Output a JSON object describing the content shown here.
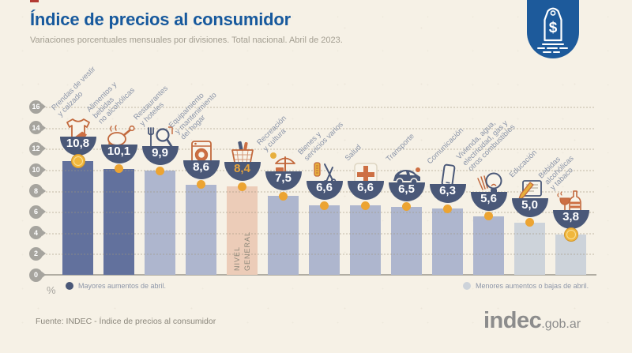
{
  "header": {
    "title": "Índice de precios al consumidor",
    "subtitle": "Variaciones porcentuales mensuales por divisiones. Total nacional. Abril de 2023."
  },
  "badge": {
    "icon": "price-tag-icon",
    "symbol": "$"
  },
  "chart_data": {
    "type": "bar",
    "title": "Índice de precios al consumidor",
    "subtitle": "Variaciones porcentuales mensuales por divisiones. Total nacional. Abril de 2023.",
    "ylabel": "%",
    "ylim": [
      0,
      16
    ],
    "yticks": [
      0,
      2,
      4,
      6,
      8,
      10,
      12,
      14,
      16
    ],
    "grid": true,
    "legend_position": "bottom",
    "marker_color": "#eca432",
    "group_colors": {
      "mayores": "#62719d",
      "intermedios": "#aeb6ce",
      "menores": "#cdd3da",
      "nivel_general": "#ecccb8"
    },
    "categories": [
      {
        "label": "Prendas de vestir y calzado",
        "label_lines": [
          "Prendas de vestir",
          "y calzado"
        ],
        "value": 10.8,
        "value_display": "10,8",
        "icon": "clothing-icon",
        "group": "mayores",
        "marker": "coin"
      },
      {
        "label": "Alimentos y bebidas no alcohólicas",
        "label_lines": [
          "Alimentos y",
          "bebidas",
          "no alcohólicas"
        ],
        "value": 10.1,
        "value_display": "10,1",
        "icon": "food-icon",
        "group": "mayores",
        "marker": "dot"
      },
      {
        "label": "Restaurantes y hoteles",
        "label_lines": [
          "Restaurantes",
          "y hoteles"
        ],
        "value": 9.9,
        "value_display": "9,9",
        "icon": "restaurant-icon",
        "group": "intermedios",
        "marker": "dot"
      },
      {
        "label": "Equipamiento y mantenimiento del hogar",
        "label_lines": [
          "Equipamiento",
          "y mantenimiento",
          "del hogar"
        ],
        "value": 8.6,
        "value_display": "8,6",
        "icon": "home-equipment-icon",
        "group": "intermedios",
        "marker": "dot"
      },
      {
        "label": "Nivel general",
        "label_lines": [],
        "bar_label": "NIVEL\nGENERAL",
        "value": 8.4,
        "value_display": "8,4",
        "value_color": "#e7a43c",
        "icon": "basket-icon",
        "group": "nivel_general",
        "marker": "dot"
      },
      {
        "label": "Recreación y cultura",
        "label_lines": [
          "Recreación",
          "y cultura"
        ],
        "value": 7.5,
        "value_display": "7,5",
        "icon": "recreation-icon",
        "group": "intermedios",
        "marker": "dot"
      },
      {
        "label": "Bienes y servicios varios",
        "label_lines": [
          "Bienes y",
          "servicios varios"
        ],
        "value": 6.6,
        "value_display": "6,6",
        "icon": "goods-icon",
        "group": "intermedios",
        "marker": "dot"
      },
      {
        "label": "Salud",
        "label_lines": [
          "Salud"
        ],
        "value": 6.6,
        "value_display": "6,6",
        "icon": "health-icon",
        "group": "intermedios",
        "marker": "dot"
      },
      {
        "label": "Transporte",
        "label_lines": [
          "Transporte"
        ],
        "value": 6.5,
        "value_display": "6,5",
        "icon": "transport-icon",
        "group": "intermedios",
        "marker": "dot"
      },
      {
        "label": "Comunicación",
        "label_lines": [
          "Comunicación"
        ],
        "value": 6.3,
        "value_display": "6,3",
        "icon": "communication-icon",
        "group": "intermedios",
        "marker": "dot"
      },
      {
        "label": "Vivienda, agua, electricidad, gas y otros combustibles",
        "label_lines": [
          "Vivienda, agua,",
          "electricidad, gas y",
          "otros combustibles"
        ],
        "value": 5.6,
        "value_display": "5,6",
        "icon": "housing-icon",
        "group": "intermedios",
        "marker": "dot"
      },
      {
        "label": "Educación",
        "label_lines": [
          "Educación"
        ],
        "value": 5.0,
        "value_display": "5,0",
        "icon": "education-icon",
        "group": "menores",
        "marker": "dot"
      },
      {
        "label": "Bebidas alcohólicas y tabaco",
        "label_lines": [
          "Bebidas",
          "alcohólicas",
          "y tabaco"
        ],
        "value": 3.8,
        "value_display": "3,8",
        "icon": "beverages-icon",
        "group": "menores",
        "marker": "coin"
      }
    ],
    "legend": [
      {
        "label": "Mayores aumentos de abril.",
        "color": "#4a5878"
      },
      {
        "label": "Menores aumentos o bajas de abril.",
        "color": "#cdd3da"
      }
    ]
  },
  "footer": {
    "source": "Fuente: INDEC - Índice de precios al consumidor",
    "logo_text": "indec",
    "logo_suffix": ".gob.ar"
  }
}
